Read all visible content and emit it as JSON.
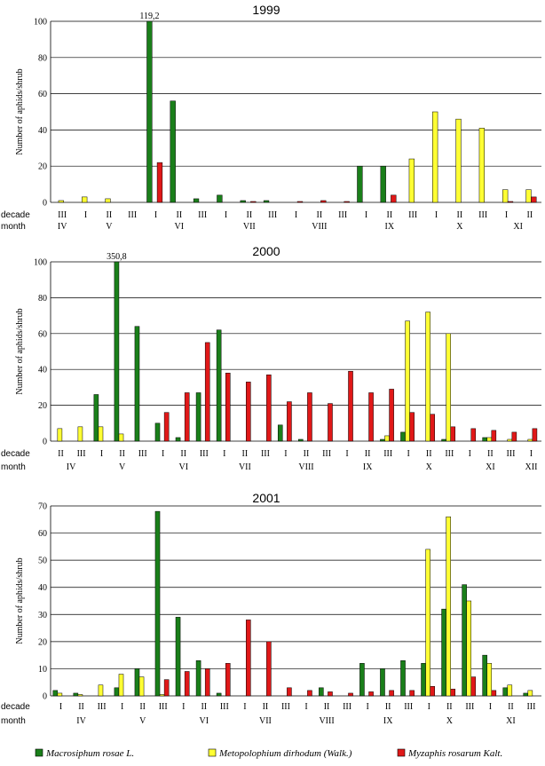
{
  "x_row_labels": {
    "decade": "decade",
    "month": "month"
  },
  "chart_data": [
    {
      "type": "bar",
      "title": "1999",
      "ylabel": "Number of aphids/shrub",
      "ylim": [
        0,
        100
      ],
      "yticks": [
        0,
        20,
        40,
        60,
        80,
        100
      ],
      "grid": true,
      "decades": [
        "III",
        "I",
        "II",
        "III",
        "I",
        "II",
        "III",
        "I",
        "II",
        "III",
        "I",
        "II",
        "III",
        "I",
        "II",
        "III",
        "I",
        "II",
        "III",
        "I",
        "II"
      ],
      "months": [
        {
          "label": "IV",
          "start": 0,
          "end": 0
        },
        {
          "label": "V",
          "start": 1,
          "end": 3
        },
        {
          "label": "VI",
          "start": 4,
          "end": 6
        },
        {
          "label": "VII",
          "start": 7,
          "end": 9
        },
        {
          "label": "VIII",
          "start": 10,
          "end": 12
        },
        {
          "label": "IX",
          "start": 13,
          "end": 15
        },
        {
          "label": "X",
          "start": 16,
          "end": 18
        },
        {
          "label": "XI",
          "start": 19,
          "end": 20
        }
      ],
      "annotations": [
        {
          "text": "119,2",
          "index": 4,
          "series": 0
        }
      ],
      "series": [
        {
          "name": "Macrosiphum rosae L.",
          "color": "#1a7f1a",
          "values": [
            0,
            0,
            0,
            0,
            100,
            56,
            2,
            4,
            1,
            1,
            0,
            0,
            0,
            20,
            20,
            0,
            0,
            0,
            0,
            0,
            0
          ]
        },
        {
          "name": "Metopolophium dirhodum (Walk.)",
          "color": "#ffff33",
          "values": [
            1,
            3,
            2,
            0,
            0,
            0,
            0,
            0,
            0,
            0,
            0,
            0,
            0,
            0,
            0,
            24,
            50,
            46,
            41,
            7,
            7
          ]
        },
        {
          "name": "Myzaphis rosarum Kalt.",
          "color": "#e01818",
          "values": [
            0,
            0,
            0,
            0,
            22,
            0,
            0,
            0,
            0.5,
            0,
            0.5,
            1,
            0.5,
            0,
            4,
            0,
            0,
            0,
            0,
            0.5,
            3
          ]
        }
      ]
    },
    {
      "type": "bar",
      "title": "2000",
      "ylabel": "Number of aphids/shrub",
      "ylim": [
        0,
        100
      ],
      "yticks": [
        0,
        20,
        40,
        60,
        80,
        100
      ],
      "grid": true,
      "decades": [
        "II",
        "III",
        "I",
        "II",
        "III",
        "I",
        "II",
        "III",
        "I",
        "II",
        "III",
        "I",
        "II",
        "III",
        "I",
        "II",
        "III",
        "I",
        "II",
        "III",
        "I",
        "II",
        "III",
        "I"
      ],
      "months": [
        {
          "label": "IV",
          "start": 0,
          "end": 1
        },
        {
          "label": "V",
          "start": 2,
          "end": 4
        },
        {
          "label": "VI",
          "start": 5,
          "end": 7
        },
        {
          "label": "VII",
          "start": 8,
          "end": 10
        },
        {
          "label": "VIII",
          "start": 11,
          "end": 13
        },
        {
          "label": "IX",
          "start": 14,
          "end": 16
        },
        {
          "label": "X",
          "start": 17,
          "end": 19
        },
        {
          "label": "XI",
          "start": 20,
          "end": 22
        },
        {
          "label": "XII",
          "start": 23,
          "end": 23
        }
      ],
      "annotations": [
        {
          "text": "350,8",
          "index": 3,
          "series": 0
        }
      ],
      "series": [
        {
          "name": "Macrosiphum rosae L.",
          "color": "#1a7f1a",
          "values": [
            0,
            0,
            26,
            100,
            64,
            10,
            2,
            27,
            62,
            0,
            0,
            9,
            1,
            0,
            0,
            0,
            1,
            5,
            0,
            1,
            0,
            2,
            0,
            0
          ]
        },
        {
          "name": "Metopolophium dirhodum (Walk.)",
          "color": "#ffff33",
          "values": [
            7,
            8,
            8,
            4,
            0,
            0,
            0,
            0,
            0,
            0,
            0,
            0,
            0,
            0,
            0,
            0,
            3,
            67,
            72,
            60,
            0,
            2,
            1,
            1
          ]
        },
        {
          "name": "Myzaphis rosarum Kalt.",
          "color": "#e01818",
          "values": [
            0,
            0,
            0,
            0,
            0,
            16,
            27,
            55,
            38,
            33,
            37,
            22,
            27,
            21,
            39,
            27,
            29,
            16,
            15,
            8,
            7,
            6,
            5,
            7
          ]
        }
      ]
    },
    {
      "type": "bar",
      "title": "2001",
      "ylabel": "Number of aphids/shrub",
      "ylim": [
        0,
        70
      ],
      "yticks": [
        0,
        10,
        20,
        30,
        40,
        50,
        60,
        70
      ],
      "grid": true,
      "decades": [
        "I",
        "II",
        "III",
        "I",
        "II",
        "III",
        "I",
        "II",
        "III",
        "I",
        "II",
        "III",
        "I",
        "II",
        "III",
        "I",
        "II",
        "III",
        "I",
        "II",
        "III",
        "I",
        "II",
        "III"
      ],
      "months": [
        {
          "label": "IV",
          "start": 0,
          "end": 2
        },
        {
          "label": "V",
          "start": 3,
          "end": 5
        },
        {
          "label": "VI",
          "start": 6,
          "end": 8
        },
        {
          "label": "VII",
          "start": 9,
          "end": 11
        },
        {
          "label": "VIII",
          "start": 12,
          "end": 14
        },
        {
          "label": "IX",
          "start": 15,
          "end": 17
        },
        {
          "label": "X",
          "start": 18,
          "end": 20
        },
        {
          "label": "XI",
          "start": 21,
          "end": 23
        }
      ],
      "annotations": [],
      "series": [
        {
          "name": "Macrosiphum rosae L.",
          "color": "#1a7f1a",
          "values": [
            2,
            1,
            0,
            3,
            10,
            68,
            29,
            13,
            1,
            0,
            0,
            0,
            0,
            3,
            0,
            12,
            10,
            13,
            12,
            32,
            41,
            15,
            3,
            1
          ]
        },
        {
          "name": "Metopolophium dirhodum (Walk.)",
          "color": "#ffff33",
          "values": [
            1,
            0.5,
            4,
            8,
            7,
            0.5,
            0,
            0,
            0,
            0,
            0,
            0,
            0,
            0,
            0,
            0,
            0,
            0,
            54,
            66,
            35,
            12,
            4,
            2
          ]
        },
        {
          "name": "Myzaphis rosarum Kalt.",
          "color": "#e01818",
          "values": [
            0,
            0,
            0,
            0,
            0,
            6,
            9,
            10,
            12,
            28,
            20,
            3,
            2,
            1.5,
            1,
            1.5,
            2,
            2,
            3.5,
            2.5,
            7,
            2,
            0,
            0
          ]
        }
      ]
    }
  ],
  "legend": [
    {
      "label": "Macrosiphum rosae L.",
      "color": "#1a7f1a"
    },
    {
      "label": "Metopolophium dirhodum (Walk.)",
      "color": "#ffff33"
    },
    {
      "label": "Myzaphis rosarum Kalt."
    }
  ]
}
